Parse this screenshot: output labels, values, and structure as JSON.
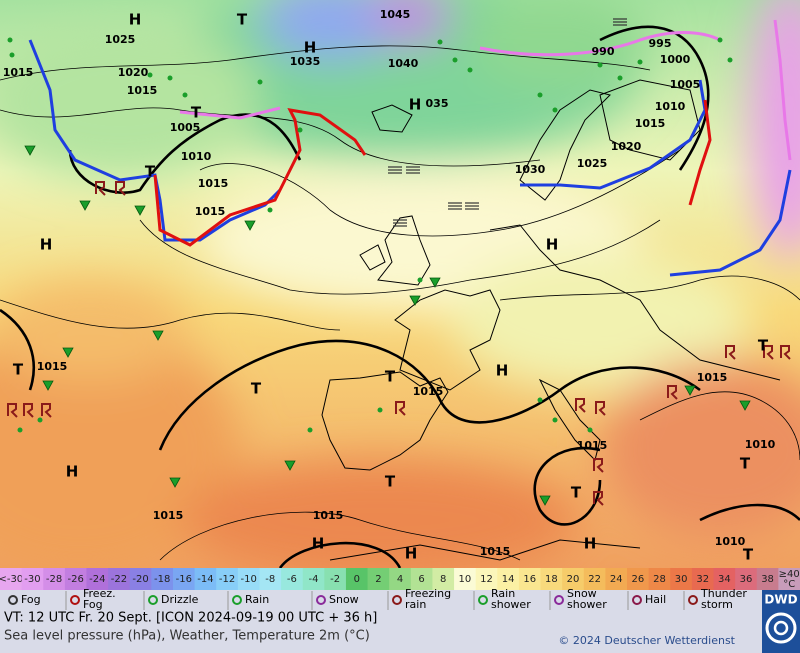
{
  "map": {
    "labels": [
      "H",
      "T",
      "1045",
      "1025",
      "H",
      "1035",
      "1040",
      "1015",
      "1020",
      "1015",
      "H",
      "035",
      "T",
      "1005",
      "1010",
      "T",
      "1015",
      "1015",
      "1030",
      "1025",
      "1020",
      "1015",
      "1010",
      "1005",
      "1000",
      "995",
      "990",
      "H",
      "H",
      "1015",
      "T",
      "T",
      "T",
      "1015",
      "H",
      "1015",
      "H",
      "T",
      "1015",
      "1015",
      "H",
      "H",
      "1015",
      "H",
      "T",
      "1015",
      "1010",
      "T",
      "1010",
      "T",
      "T"
    ]
  },
  "legend": {
    "scale": [
      {
        "label": "<-30",
        "color": "#e7a6ef"
      },
      {
        "label": "-30",
        "color": "#e29ef0"
      },
      {
        "label": "-28",
        "color": "#d48ee8"
      },
      {
        "label": "-26",
        "color": "#c27ee0"
      },
      {
        "label": "-24",
        "color": "#b070da"
      },
      {
        "label": "-22",
        "color": "#9c74dc"
      },
      {
        "label": "-20",
        "color": "#8a80e4"
      },
      {
        "label": "-18",
        "color": "#7c92ec"
      },
      {
        "label": "-16",
        "color": "#7aa6f2"
      },
      {
        "label": "-14",
        "color": "#7cbcf6"
      },
      {
        "label": "-12",
        "color": "#88cef8"
      },
      {
        "label": "-10",
        "color": "#98dcf8"
      },
      {
        "label": "-8",
        "color": "#a4e6f4"
      },
      {
        "label": "-6",
        "color": "#98e8de"
      },
      {
        "label": "-4",
        "color": "#90e6c8"
      },
      {
        "label": "-2",
        "color": "#88e0b0"
      },
      {
        "label": "0",
        "color": "#58c468"
      },
      {
        "label": "2",
        "color": "#74ce74"
      },
      {
        "label": "4",
        "color": "#94d884"
      },
      {
        "label": "6",
        "color": "#b2e294"
      },
      {
        "label": "8",
        "color": "#d2eca4"
      },
      {
        "label": "10",
        "color": "#fbfbd6"
      },
      {
        "label": "12",
        "color": "#fbf6ba"
      },
      {
        "label": "14",
        "color": "#fbf0a4"
      },
      {
        "label": "16",
        "color": "#fae690"
      },
      {
        "label": "18",
        "color": "#f8da7c"
      },
      {
        "label": "20",
        "color": "#f6cc6a"
      },
      {
        "label": "22",
        "color": "#f4bc5c"
      },
      {
        "label": "24",
        "color": "#f2aa52"
      },
      {
        "label": "26",
        "color": "#f0984c"
      },
      {
        "label": "28",
        "color": "#ee8848"
      },
      {
        "label": "30",
        "color": "#ec7848"
      },
      {
        "label": "32",
        "color": "#e86a50"
      },
      {
        "label": "34",
        "color": "#e46262"
      },
      {
        "label": "36",
        "color": "#dc6c7c"
      },
      {
        "label": "38",
        "color": "#c87c8e"
      },
      {
        "label": "≥40",
        "color": "#c89cba"
      }
    ],
    "unit": "°C",
    "weather": [
      {
        "label": [
          "Fog"
        ]
      },
      {
        "label": [
          "Freez.",
          "Fog"
        ]
      },
      {
        "label": [
          "Drizzle"
        ]
      },
      {
        "label": [
          "Rain"
        ]
      },
      {
        "label": [
          "Snow"
        ]
      },
      {
        "label": [
          "Freezing",
          "rain"
        ]
      },
      {
        "label": [
          "Rain",
          "shower"
        ]
      },
      {
        "label": [
          "Snow",
          "shower"
        ]
      },
      {
        "label": [
          "Hail"
        ]
      },
      {
        "label": [
          "Thunder",
          "storm"
        ]
      }
    ]
  },
  "footer": {
    "valid_time": "VT: 12 UTC Fr.  20 Sept. [ICON 2024-09-19  00 UTC + 36 h]",
    "description": "Sea level pressure (hPa), Weather, Temperature 2m (°C)",
    "copyright": "© 2024 Deutscher Wetterdienst",
    "logo": "DWD"
  }
}
